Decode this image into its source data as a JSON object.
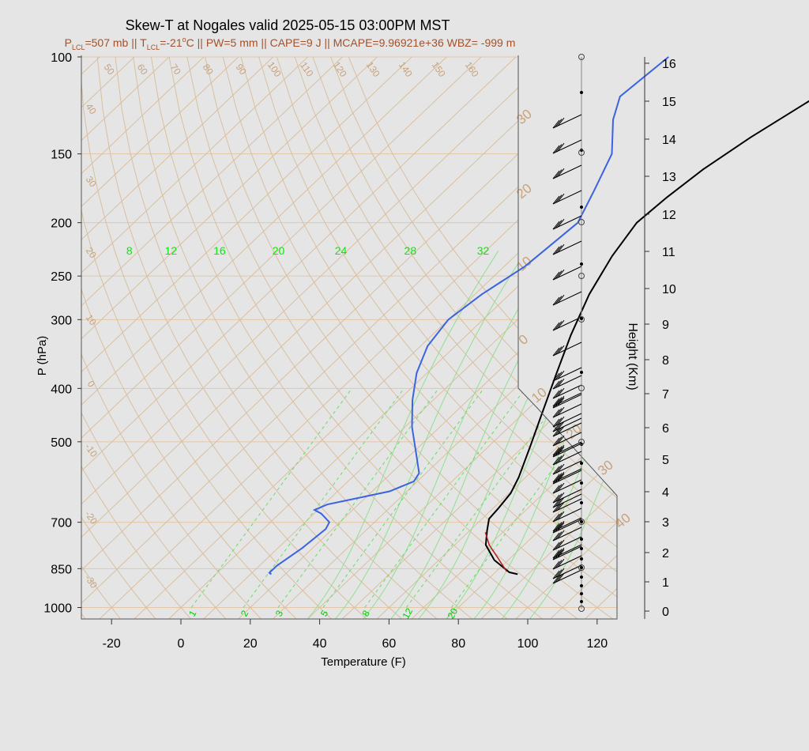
{
  "chart_data": {
    "type": "line",
    "title": "Skew-T at Nogales valid 2025-05-15 03:00PM MST",
    "subtitle": {
      "p_lcl_prefix": "P",
      "p_lcl_sub": "LCL",
      "p_lcl_val": "=507 mb || T",
      "t_lcl_sub": "LCL",
      "t_lcl_val": "=-21",
      "deg": "o",
      "rest": "C || PW=5 mm || CAPE=9 J || MCAPE=9.96921e+36 WBZ= -999 m"
    },
    "xlabel": "Temperature (F)",
    "ylabel": "P (hPa)",
    "y2label": "Height (Km)",
    "xticks": [
      "-20",
      "0",
      "20",
      "40",
      "60",
      "80",
      "100",
      "120"
    ],
    "xtick_values": [
      -20,
      0,
      20,
      40,
      60,
      80,
      100,
      120
    ],
    "xlim": [
      -28,
      125
    ],
    "ylim": [
      1050,
      100
    ],
    "pressure_ticks": [
      {
        "p": 100,
        "label": "100"
      },
      {
        "p": 150,
        "label": "150"
      },
      {
        "p": 200,
        "label": "200"
      },
      {
        "p": 250,
        "label": "250"
      },
      {
        "p": 300,
        "label": "300"
      },
      {
        "p": 400,
        "label": "400"
      },
      {
        "p": 500,
        "label": "500"
      },
      {
        "p": 700,
        "label": "700"
      },
      {
        "p": 850,
        "label": "850"
      },
      {
        "p": 1000,
        "label": "1000"
      }
    ],
    "height_ticks": [
      "0",
      "1",
      "2",
      "3",
      "4",
      "5",
      "6",
      "7",
      "8",
      "9",
      "10",
      "11",
      "12",
      "13",
      "14",
      "15",
      "16"
    ],
    "isotherm_labels": [
      "50",
      "60",
      "70",
      "80",
      "90",
      "100",
      "110",
      "120",
      "130",
      "140",
      "150",
      "160"
    ],
    "dry_adiabat_labels": [
      "40",
      "30",
      "20",
      "10",
      "0",
      "-10",
      "-20",
      "-30"
    ],
    "theta_e_labels": [
      "30",
      "20",
      "10",
      "0",
      "10",
      "20",
      "30",
      "40"
    ],
    "mixing_ratio_top_labels": [
      "8",
      "12",
      "16",
      "20",
      "24",
      "28",
      "32"
    ],
    "mixing_ratio_top_values": [
      -16,
      -4,
      10,
      27,
      45,
      65,
      86
    ],
    "mixing_ratio_bottom_labels": [
      "1",
      "2",
      "3",
      "5",
      "8",
      "12",
      "20"
    ],
    "mixing_ratio_bottom_values": [
      3,
      18,
      28,
      41,
      53,
      65,
      78
    ],
    "series": [
      {
        "name": "Temperature",
        "color": "#000000",
        "points": [
          [
            87,
            870
          ],
          [
            84,
            863
          ],
          [
            76,
            820
          ],
          [
            69,
            770
          ],
          [
            65,
            725
          ],
          [
            62,
            690
          ],
          [
            61.5,
            660
          ],
          [
            60.5,
            620
          ],
          [
            58,
            580
          ],
          [
            52,
            510
          ],
          [
            46,
            450
          ],
          [
            38,
            380
          ],
          [
            30,
            320
          ],
          [
            23,
            270
          ],
          [
            18,
            230
          ],
          [
            15,
            200
          ],
          [
            16,
            180
          ],
          [
            18,
            160
          ],
          [
            22,
            140
          ],
          [
            28,
            120
          ],
          [
            35,
            100
          ]
        ]
      },
      {
        "name": "Dewpoint",
        "color": "#3b63e0",
        "points": [
          [
            16,
            870
          ],
          [
            15,
            865
          ],
          [
            15,
            840
          ],
          [
            17,
            780
          ],
          [
            18,
            720
          ],
          [
            17,
            700
          ],
          [
            12,
            675
          ],
          [
            9,
            665
          ],
          [
            11,
            650
          ],
          [
            25,
            615
          ],
          [
            29,
            590
          ],
          [
            28,
            570
          ],
          [
            22,
            530
          ],
          [
            12,
            470
          ],
          [
            4,
            420
          ],
          [
            -3,
            375
          ],
          [
            -8,
            335
          ],
          [
            -10,
            300
          ],
          [
            -8,
            270
          ],
          [
            -4,
            240
          ],
          [
            -2,
            200
          ],
          [
            -7,
            175
          ],
          [
            -13,
            150
          ],
          [
            -23,
            130
          ],
          [
            -28,
            118
          ],
          [
            -26,
            100
          ]
        ]
      },
      {
        "name": "Parcel",
        "color": "#b22222",
        "points": [
          [
            83,
            860
          ],
          [
            76,
            810
          ],
          [
            70,
            770
          ],
          [
            65,
            730
          ]
        ]
      }
    ]
  }
}
